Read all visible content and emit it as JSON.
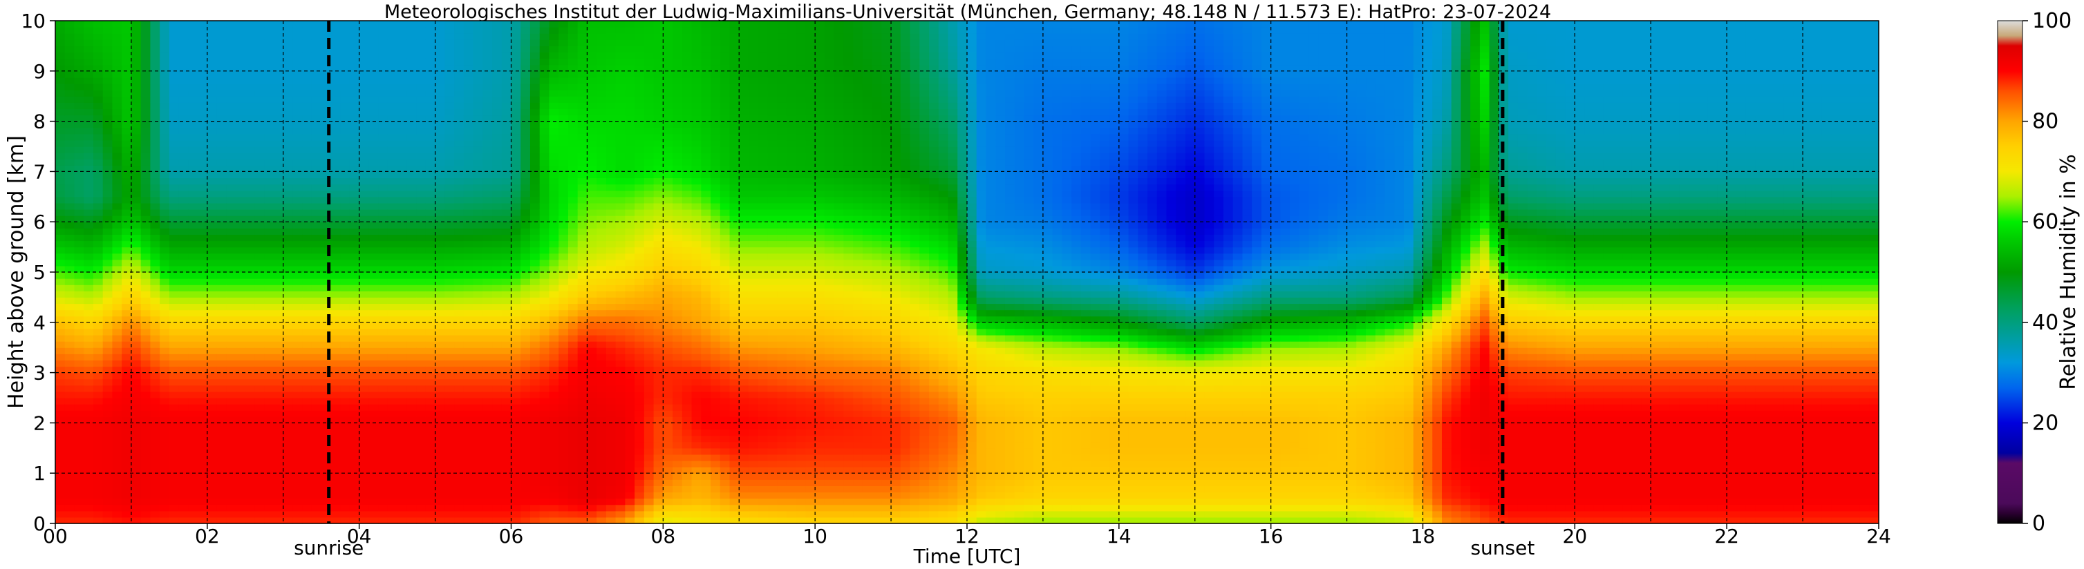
{
  "chart_data": {
    "type": "heatmap",
    "title": "Meteorologisches Institut der Ludwig-Maximilians-Universität (München, Germany; 48.148 N / 11.573 E):    HatPro: 23-07-2024",
    "xlabel": "Time [UTC]",
    "ylabel": "Height above ground [km]",
    "xlim": [
      0,
      24
    ],
    "ylim": [
      0,
      10
    ],
    "x_ticks": [
      "00",
      "02",
      "04",
      "06",
      "08",
      "10",
      "12",
      "14",
      "16",
      "18",
      "20",
      "22",
      "24"
    ],
    "y_ticks": [
      "0",
      "1",
      "2",
      "3",
      "4",
      "5",
      "6",
      "7",
      "8",
      "9",
      "10"
    ],
    "grid": true,
    "colorbar": {
      "label": "Relative Humidity in %",
      "range": [
        0,
        100
      ],
      "ticks": [
        "0",
        "20",
        "40",
        "60",
        "80",
        "100"
      ],
      "stops": [
        {
          "value": 0,
          "color": "#000000"
        },
        {
          "value": 2,
          "color": "#2a0030"
        },
        {
          "value": 4,
          "color": "#4b0a5a"
        },
        {
          "value": 12,
          "color": "#5a0a66"
        },
        {
          "value": 14,
          "color": "#0000a0"
        },
        {
          "value": 20,
          "color": "#0000dd"
        },
        {
          "value": 27,
          "color": "#0066ee"
        },
        {
          "value": 32,
          "color": "#0099dd"
        },
        {
          "value": 37,
          "color": "#009ea0"
        },
        {
          "value": 43,
          "color": "#00a05a"
        },
        {
          "value": 50,
          "color": "#009a00"
        },
        {
          "value": 56,
          "color": "#00c800"
        },
        {
          "value": 60,
          "color": "#00ee00"
        },
        {
          "value": 65,
          "color": "#aaf000"
        },
        {
          "value": 70,
          "color": "#f5e800"
        },
        {
          "value": 75,
          "color": "#ffd000"
        },
        {
          "value": 80,
          "color": "#ffa500"
        },
        {
          "value": 86,
          "color": "#ff5000"
        },
        {
          "value": 90,
          "color": "#ff0000"
        },
        {
          "value": 95,
          "color": "#dd0000"
        },
        {
          "value": 97,
          "color": "#c8a878"
        },
        {
          "value": 100,
          "color": "#dddddd"
        }
      ]
    },
    "markers": [
      {
        "label": "sunrise",
        "x": 3.6
      },
      {
        "label": "sunset",
        "x": 19.05
      }
    ],
    "rh_profile_x_hours": [
      0,
      0.5,
      1,
      1.5,
      2,
      3,
      4,
      5,
      6,
      6.5,
      7,
      7.5,
      8,
      8.5,
      9,
      10,
      11,
      11.8,
      12.2,
      13,
      14,
      15,
      16,
      17,
      17.8,
      18.3,
      18.8,
      19.1,
      20,
      22,
      24
    ],
    "rh_profile_y_km": [
      0,
      0.5,
      1,
      1.5,
      2,
      2.5,
      3,
      3.5,
      4,
      4.5,
      5,
      5.5,
      6,
      6.5,
      7,
      8,
      9,
      10
    ],
    "rh_values": [
      [
        88,
        91,
        91,
        91,
        91,
        89,
        87,
        82,
        77,
        68,
        62,
        56,
        50,
        45,
        44,
        47,
        50,
        52
      ],
      [
        88,
        91,
        91,
        91,
        91,
        89,
        86,
        80,
        74,
        66,
        60,
        54,
        48,
        42,
        42,
        47,
        52,
        55
      ],
      [
        89,
        92,
        92,
        92,
        92,
        91,
        90,
        87,
        82,
        75,
        68,
        62,
        56,
        52,
        53,
        56,
        56,
        56
      ],
      [
        88,
        91,
        91,
        91,
        91,
        89,
        86,
        80,
        74,
        65,
        58,
        52,
        46,
        40,
        36,
        34,
        33,
        33
      ],
      [
        88,
        91,
        91,
        91,
        91,
        89,
        86,
        80,
        74,
        65,
        58,
        52,
        46,
        40,
        36,
        34,
        33,
        33
      ],
      [
        88,
        91,
        91,
        91,
        91,
        89,
        86,
        80,
        74,
        65,
        58,
        52,
        46,
        40,
        36,
        34,
        33,
        33
      ],
      [
        88,
        91,
        91,
        91,
        91,
        89,
        86,
        80,
        74,
        65,
        58,
        52,
        46,
        40,
        36,
        34,
        33,
        33
      ],
      [
        88,
        91,
        91,
        91,
        91,
        89,
        86,
        80,
        74,
        65,
        58,
        52,
        46,
        40,
        36,
        34,
        33,
        33
      ],
      [
        88,
        91,
        91,
        91,
        91,
        89,
        86,
        80,
        74,
        66,
        59,
        53,
        47,
        42,
        38,
        37,
        36,
        36
      ],
      [
        85,
        91,
        92,
        92,
        92,
        90,
        88,
        84,
        78,
        70,
        64,
        60,
        58,
        57,
        58,
        60,
        54,
        48
      ],
      [
        85,
        93,
        93,
        93,
        93,
        92,
        91,
        90,
        84,
        76,
        70,
        66,
        64,
        62,
        60,
        58,
        56,
        55
      ],
      [
        80,
        91,
        92,
        92,
        92,
        91,
        90,
        88,
        84,
        78,
        72,
        68,
        65,
        62,
        58,
        58,
        57,
        55
      ],
      [
        68,
        80,
        84,
        86,
        86,
        88,
        88,
        86,
        82,
        80,
        76,
        72,
        68,
        64,
        60,
        57,
        56,
        56
      ],
      [
        70,
        78,
        80,
        88,
        90,
        90,
        88,
        84,
        80,
        78,
        74,
        70,
        66,
        62,
        58,
        56,
        55,
        54
      ],
      [
        72,
        82,
        86,
        89,
        90,
        89,
        86,
        81,
        76,
        72,
        68,
        64,
        60,
        56,
        54,
        53,
        52,
        52
      ],
      [
        74,
        82,
        86,
        88,
        89,
        88,
        84,
        80,
        76,
        72,
        68,
        64,
        60,
        56,
        53,
        52,
        51,
        51
      ],
      [
        74,
        82,
        86,
        88,
        88,
        86,
        83,
        78,
        74,
        70,
        66,
        62,
        58,
        54,
        51,
        50,
        49,
        48
      ],
      [
        72,
        80,
        82,
        84,
        85,
        82,
        78,
        74,
        70,
        66,
        62,
        58,
        54,
        50,
        46,
        42,
        38,
        36
      ],
      [
        66,
        76,
        78,
        78,
        78,
        76,
        74,
        70,
        56,
        42,
        34,
        32,
        30,
        30,
        30,
        30,
        30,
        30
      ],
      [
        64,
        74,
        76,
        76,
        76,
        75,
        72,
        66,
        54,
        40,
        33,
        31,
        29,
        28,
        28,
        28,
        29,
        30
      ],
      [
        64,
        74,
        76,
        77,
        77,
        75,
        71,
        64,
        50,
        38,
        30,
        27,
        25,
        24,
        25,
        27,
        29,
        30
      ],
      [
        64,
        74,
        76,
        77,
        77,
        75,
        70,
        58,
        42,
        32,
        24,
        20,
        18,
        18,
        20,
        23,
        26,
        28
      ],
      [
        64,
        74,
        76,
        77,
        77,
        75,
        71,
        64,
        52,
        40,
        32,
        28,
        26,
        26,
        27,
        28,
        30,
        30
      ],
      [
        64,
        74,
        76,
        76,
        76,
        75,
        71,
        65,
        54,
        40,
        34,
        31,
        29,
        28,
        28,
        29,
        30,
        30
      ],
      [
        66,
        76,
        78,
        78,
        78,
        76,
        74,
        70,
        60,
        44,
        36,
        32,
        30,
        30,
        30,
        30,
        30,
        30
      ],
      [
        82,
        88,
        89,
        89,
        89,
        87,
        84,
        80,
        72,
        62,
        56,
        52,
        48,
        44,
        40,
        36,
        34,
        33
      ],
      [
        86,
        90,
        91,
        92,
        92,
        92,
        91,
        90,
        86,
        80,
        72,
        66,
        60,
        56,
        54,
        58,
        60,
        56
      ],
      [
        88,
        91,
        91,
        91,
        91,
        89,
        87,
        82,
        76,
        68,
        60,
        54,
        48,
        42,
        38,
        35,
        34,
        33
      ],
      [
        88,
        91,
        91,
        91,
        91,
        89,
        86,
        80,
        74,
        65,
        58,
        52,
        46,
        40,
        36,
        34,
        33,
        33
      ],
      [
        88,
        91,
        91,
        91,
        91,
        89,
        86,
        80,
        74,
        65,
        58,
        52,
        46,
        40,
        36,
        34,
        33,
        33
      ],
      [
        88,
        91,
        91,
        91,
        91,
        89,
        86,
        80,
        74,
        65,
        58,
        52,
        46,
        40,
        36,
        34,
        33,
        33
      ]
    ]
  }
}
